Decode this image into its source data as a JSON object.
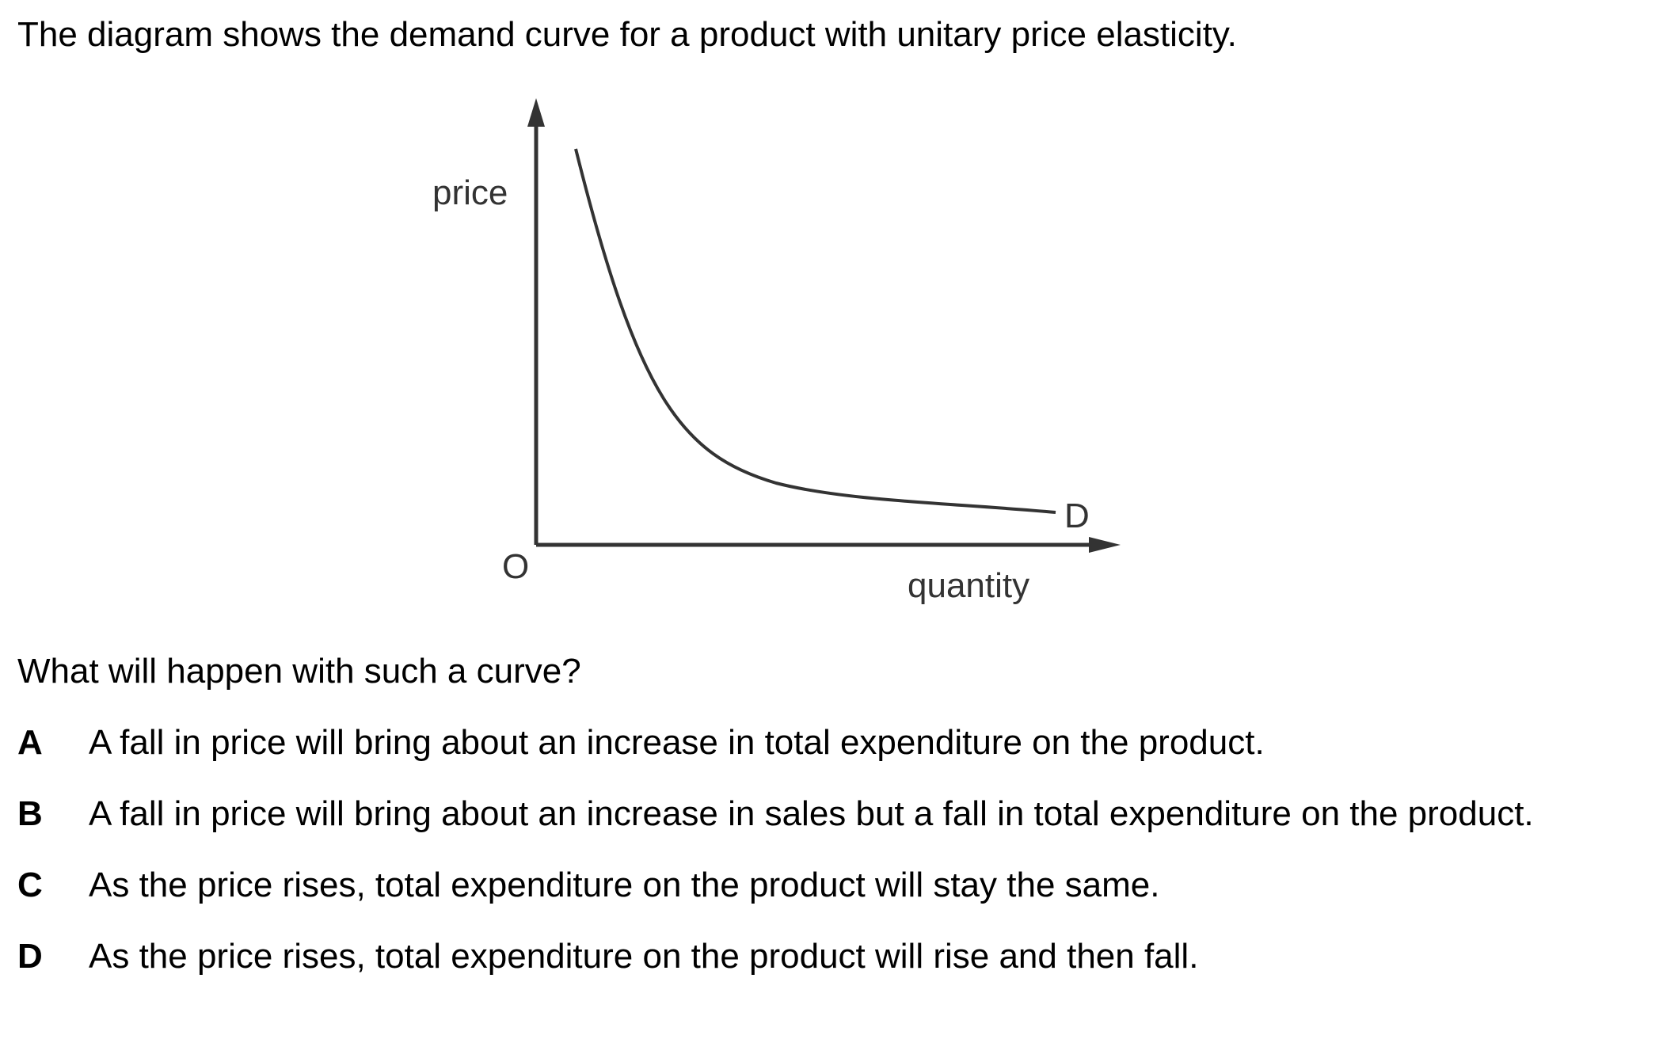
{
  "intro": "The diagram shows the demand curve for a product with unitary price elasticity.",
  "diagram": {
    "y_axis_label": "price",
    "x_axis_label": "quantity",
    "origin_label": "O",
    "curve_label": "D",
    "curve_type": "rectangular hyperbola (unitary elasticity)"
  },
  "question": "What will happen with such a curve?",
  "options": [
    {
      "key": "A",
      "text": "A fall in price will bring about an increase in total expenditure on the product."
    },
    {
      "key": "B",
      "text": "A fall in price will bring about an increase in sales but a fall in total expenditure on the product."
    },
    {
      "key": "C",
      "text": "As the price rises, total expenditure on the product will stay the same."
    },
    {
      "key": "D",
      "text": "As the price rises, total expenditure on the product will rise and then fall."
    }
  ],
  "colors": {
    "text": "#000000",
    "axis": "#333333"
  }
}
